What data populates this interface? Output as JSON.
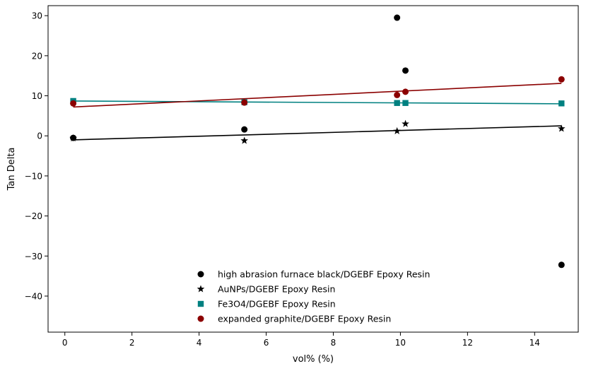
{
  "chart_data": {
    "type": "scatter",
    "title": "",
    "xlabel": "vol% (%)",
    "ylabel": "Tan Delta",
    "xlim": [
      -0.5,
      15.3
    ],
    "ylim": [
      -49,
      32.5
    ],
    "xticks": [
      0,
      2,
      4,
      6,
      8,
      10,
      12,
      14
    ],
    "yticks": [
      -40,
      -30,
      -20,
      -10,
      0,
      10,
      20,
      30
    ],
    "xtick_labels": [
      "0",
      "2",
      "4",
      "6",
      "8",
      "10",
      "12",
      "14"
    ],
    "ytick_labels": [
      "−40",
      "−30",
      "−20",
      "−10",
      "0",
      "10",
      "20",
      "30"
    ],
    "grid": false,
    "legend_position": "lower-center",
    "series": [
      {
        "name": "high abrasion furnace black/DGEBF Epoxy Resin",
        "marker": "circle",
        "color": "#000000",
        "points": [
          [
            0.25,
            -0.5
          ],
          [
            5.35,
            1.6
          ],
          [
            9.9,
            29.5
          ],
          [
            10.15,
            16.3
          ],
          [
            14.8,
            -32.2
          ]
        ],
        "fit": null
      },
      {
        "name": "AuNPs/DGEBF Epoxy Resin",
        "marker": "star",
        "color": "#000000",
        "points": [
          [
            0.25,
            -0.6
          ],
          [
            5.35,
            -1.2
          ],
          [
            9.9,
            1.2
          ],
          [
            10.15,
            3.0
          ],
          [
            14.8,
            1.8
          ]
        ],
        "fit": [
          [
            0.25,
            -1.0
          ],
          [
            14.8,
            2.5
          ]
        ]
      },
      {
        "name": "Fe3O4/DGEBF Epoxy Resin",
        "marker": "square",
        "color": "#008080",
        "points": [
          [
            0.25,
            8.7
          ],
          [
            5.35,
            8.4
          ],
          [
            9.9,
            8.2
          ],
          [
            10.15,
            8.2
          ],
          [
            14.8,
            8.1
          ]
        ],
        "fit": [
          [
            0.25,
            8.7
          ],
          [
            14.8,
            8.0
          ]
        ]
      },
      {
        "name": "expanded graphite/DGEBF Epoxy Resin",
        "marker": "circle",
        "color": "#8b0000",
        "points": [
          [
            0.25,
            8.1
          ],
          [
            5.35,
            8.3
          ],
          [
            9.9,
            10.2
          ],
          [
            10.15,
            11.0
          ],
          [
            14.8,
            14.1
          ]
        ],
        "fit": [
          [
            0.25,
            7.2
          ],
          [
            14.8,
            13.1
          ]
        ]
      }
    ]
  }
}
